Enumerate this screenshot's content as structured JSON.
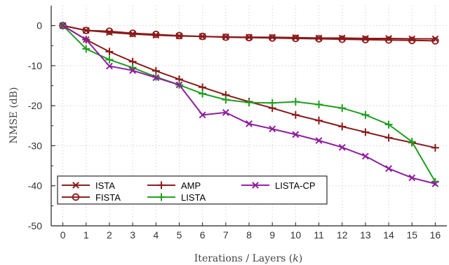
{
  "chart_data": {
    "type": "line",
    "xlabel": "Iterations / Layers (k)",
    "ylabel": "NMSE (dB)",
    "xlim": [
      -0.5,
      16.5
    ],
    "ylim": [
      -50,
      5
    ],
    "x_ticks": [
      0,
      1,
      2,
      3,
      4,
      5,
      6,
      7,
      8,
      9,
      10,
      11,
      12,
      13,
      14,
      15,
      16
    ],
    "y_ticks": [
      0,
      -10,
      -20,
      -30,
      -40,
      -50
    ],
    "grid": true,
    "legend_position": "bottom-left",
    "x": [
      0,
      1,
      2,
      3,
      4,
      5,
      6,
      7,
      8,
      9,
      10,
      11,
      12,
      13,
      14,
      15,
      16
    ],
    "series": [
      {
        "name": "ISTA",
        "color": "#8b1a1a",
        "marker": "x",
        "values": [
          0,
          -1.2,
          -1.7,
          -2.1,
          -2.4,
          -2.6,
          -2.7,
          -2.8,
          -2.9,
          -2.9,
          -3.0,
          -3.1,
          -3.1,
          -3.2,
          -3.2,
          -3.3,
          -3.3
        ]
      },
      {
        "name": "FISTA",
        "color": "#8b1a1a",
        "marker": "o",
        "values": [
          0,
          -1.2,
          -1.4,
          -1.9,
          -2.2,
          -2.5,
          -2.7,
          -2.9,
          -3.0,
          -3.1,
          -3.2,
          -3.3,
          -3.4,
          -3.5,
          -3.6,
          -3.7,
          -3.8
        ]
      },
      {
        "name": "AMP",
        "color": "#8b1a1a",
        "marker": "+",
        "values": [
          0,
          -3.5,
          -6.5,
          -9.0,
          -11.3,
          -13.4,
          -15.4,
          -17.3,
          -19.0,
          -20.6,
          -22.3,
          -23.7,
          -25.2,
          -26.6,
          -28.0,
          -29.2,
          -30.5
        ]
      },
      {
        "name": "LISTA",
        "color": "#1e9e1e",
        "marker": "+",
        "values": [
          0,
          -5.8,
          -8.5,
          -10.5,
          -12.8,
          -14.8,
          -17.0,
          -18.5,
          -19.2,
          -19.3,
          -19.0,
          -19.7,
          -20.6,
          -22.3,
          -24.7,
          -29.0,
          -39.0
        ]
      },
      {
        "name": "LISTA-CP",
        "color": "#8e1e9e",
        "marker": "x",
        "values": [
          0,
          -3.5,
          -10.1,
          -11.2,
          -13.0,
          -14.8,
          -22.3,
          -21.7,
          -24.5,
          -25.8,
          -27.2,
          -28.7,
          -30.4,
          -32.6,
          -35.7,
          -38.0,
          -39.5
        ]
      }
    ]
  }
}
